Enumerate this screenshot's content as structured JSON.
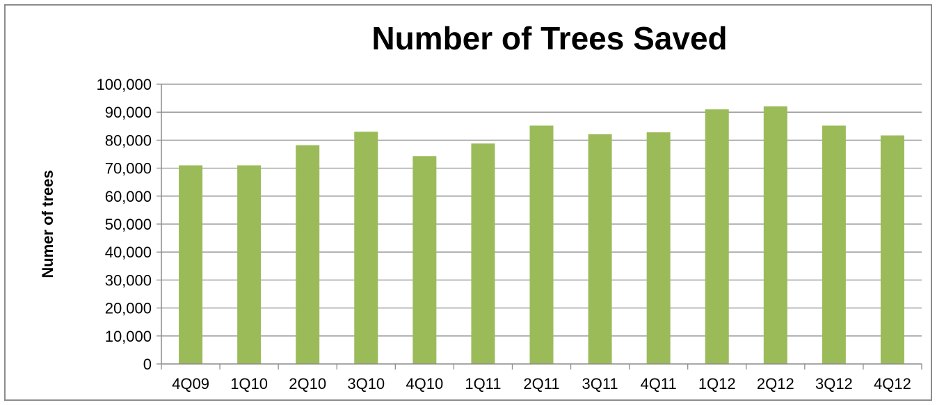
{
  "chart_data": {
    "type": "bar",
    "title": "Number of Trees Saved",
    "xlabel": "",
    "ylabel": "Numer of trees",
    "categories": [
      "4Q09",
      "1Q10",
      "2Q10",
      "3Q10",
      "4Q10",
      "1Q11",
      "2Q11",
      "3Q11",
      "4Q11",
      "1Q12",
      "2Q12",
      "3Q12",
      "4Q12"
    ],
    "series": [
      {
        "values": [
          71000,
          71000,
          78200,
          83000,
          74300,
          78800,
          85200,
          82100,
          82800,
          91000,
          92100,
          85200,
          81700
        ],
        "color": "#9bbb59"
      }
    ],
    "ylim": [
      0,
      100000
    ],
    "yticks": [
      0,
      10000,
      20000,
      30000,
      40000,
      50000,
      60000,
      70000,
      80000,
      90000,
      100000
    ],
    "ytick_labels": [
      "0",
      "10,000",
      "20,000",
      "30,000",
      "40,000",
      "50,000",
      "60,000",
      "70,000",
      "80,000",
      "90,000",
      "100,000"
    ],
    "grid": true,
    "legend": "none"
  }
}
